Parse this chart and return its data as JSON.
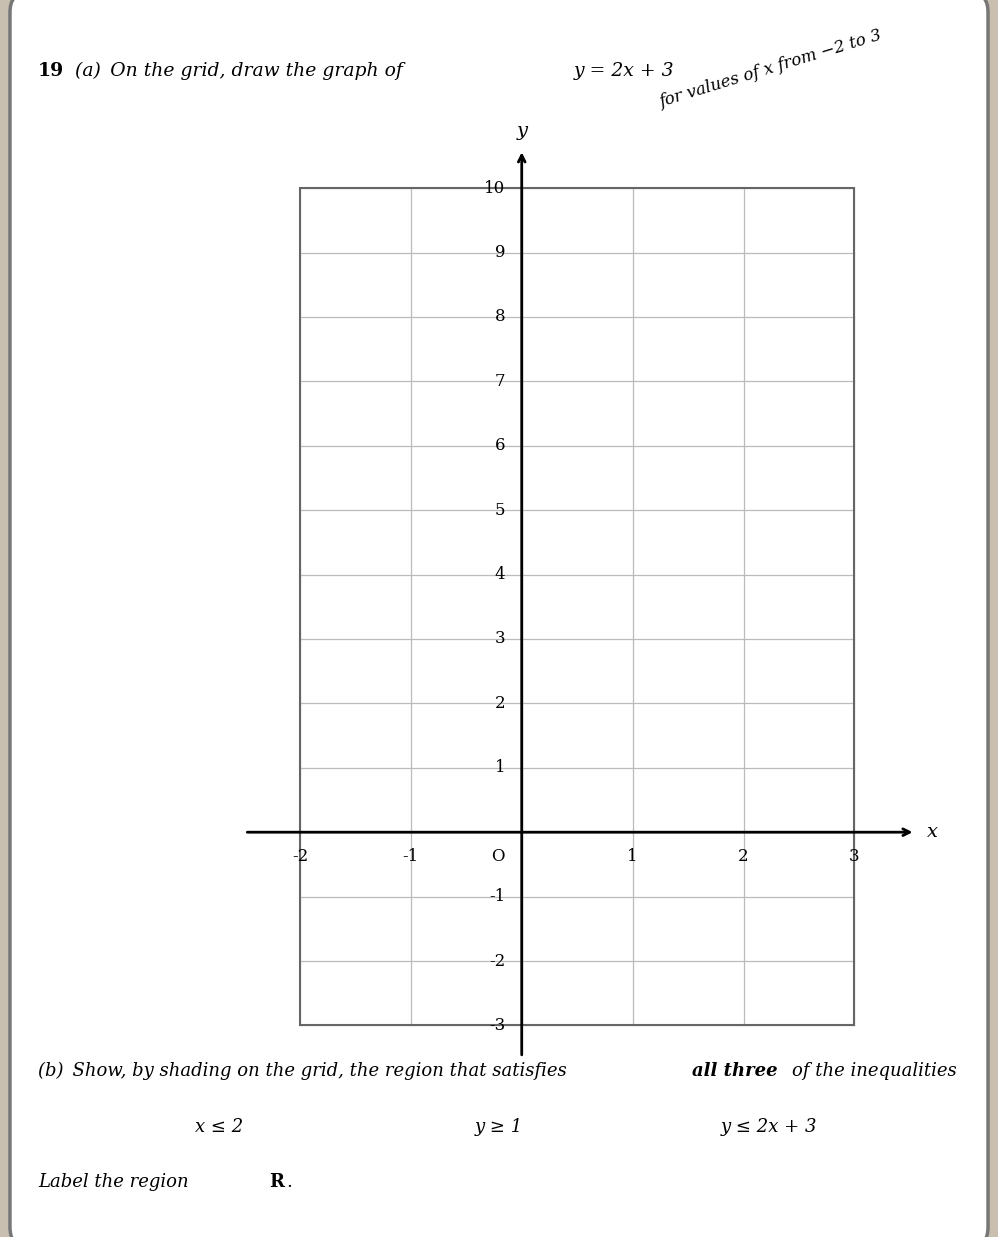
{
  "xlim": [
    -2.5,
    3.8
  ],
  "ylim": [
    -3.5,
    11.0
  ],
  "x_grid_min": -2,
  "x_grid_max": 3,
  "y_grid_min": -3,
  "y_grid_max": 10,
  "xtick_labels": [
    -2,
    -1,
    1,
    2,
    3
  ],
  "ytick_labels": [
    -3,
    -2,
    -1,
    1,
    2,
    3,
    4,
    5,
    6,
    7,
    8,
    9,
    10
  ],
  "grid_color": "#bbbbbb",
  "axis_color": "#000000",
  "line_color": "#000000",
  "shade_color": "#d0d0d0",
  "shade_alpha": 0.6,
  "paper_bg": "#ffffff",
  "outer_bg": "#c8bfb0",
  "question_num": "19",
  "part_a_text1": "(a) On the grid, draw the graph of",
  "part_a_formula": "y = 2x + 3",
  "part_a_range": "for values of x from −2 to 3",
  "part_b_line1_plain": "(b) Show, by shading on the grid, the region that satisfies ",
  "part_b_bold": "all three",
  "part_b_line1_end": " of the inequalities",
  "ineq1": "x ≤ 2",
  "ineq2": "y ≥ 1",
  "ineq3": "y ≤ 2x + 3",
  "label_plain": "Label the region ",
  "label_bold": "R",
  "label_period": "."
}
